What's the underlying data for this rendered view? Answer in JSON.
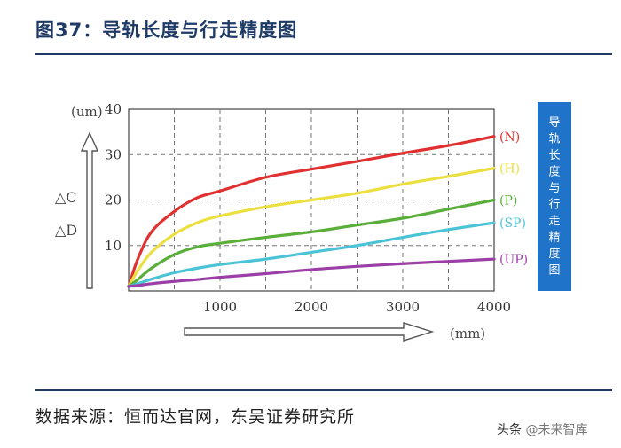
{
  "page": {
    "title": "图37：导轨长度与行走精度图",
    "source": "数据来源：恒而达官网，东吴证券研究所",
    "watermark_prefix": "头条",
    "watermark_brand": "@未来智库"
  },
  "chart_data": {
    "type": "line",
    "title": "导轨长度与行走精度图",
    "box_label": "导轨长度与行走精度图",
    "xlabel": "(mm)",
    "ylabel_unit": "(um)",
    "ylabel_lines": [
      "△C",
      "△D"
    ],
    "xlim": [
      0,
      4000
    ],
    "ylim": [
      0,
      40
    ],
    "xticks": [
      1000,
      2000,
      3000,
      4000
    ],
    "yticks": [
      10,
      20,
      30,
      40
    ],
    "grid": "dashed",
    "x": [
      0,
      100,
      250,
      500,
      750,
      1000,
      1500,
      2000,
      2500,
      3000,
      3500,
      4000
    ],
    "series": [
      {
        "name": "(N)",
        "color": "#e03030",
        "values": [
          1,
          7,
          13,
          17.5,
          20.5,
          22,
          25,
          26.8,
          28.5,
          30.3,
          32,
          34
        ]
      },
      {
        "name": "(H)",
        "color": "#ece040",
        "values": [
          1,
          4.5,
          8.5,
          12.5,
          15,
          16.5,
          18.5,
          20,
          21.5,
          23.5,
          25.2,
          27
        ]
      },
      {
        "name": "(P)",
        "color": "#5aae3a",
        "values": [
          1,
          2.5,
          5,
          8,
          9.7,
          10.5,
          11.8,
          13,
          14.5,
          16,
          18,
          20
        ]
      },
      {
        "name": "(SP)",
        "color": "#4bc3d6",
        "values": [
          1,
          1.6,
          2.6,
          4,
          5,
          5.8,
          7,
          8.5,
          10,
          11.8,
          13.5,
          15
        ]
      },
      {
        "name": "(UP)",
        "color": "#9b3fa6",
        "values": [
          1,
          1.2,
          1.6,
          2.1,
          2.5,
          3,
          3.8,
          4.7,
          5.4,
          6,
          6.5,
          7
        ]
      }
    ]
  }
}
